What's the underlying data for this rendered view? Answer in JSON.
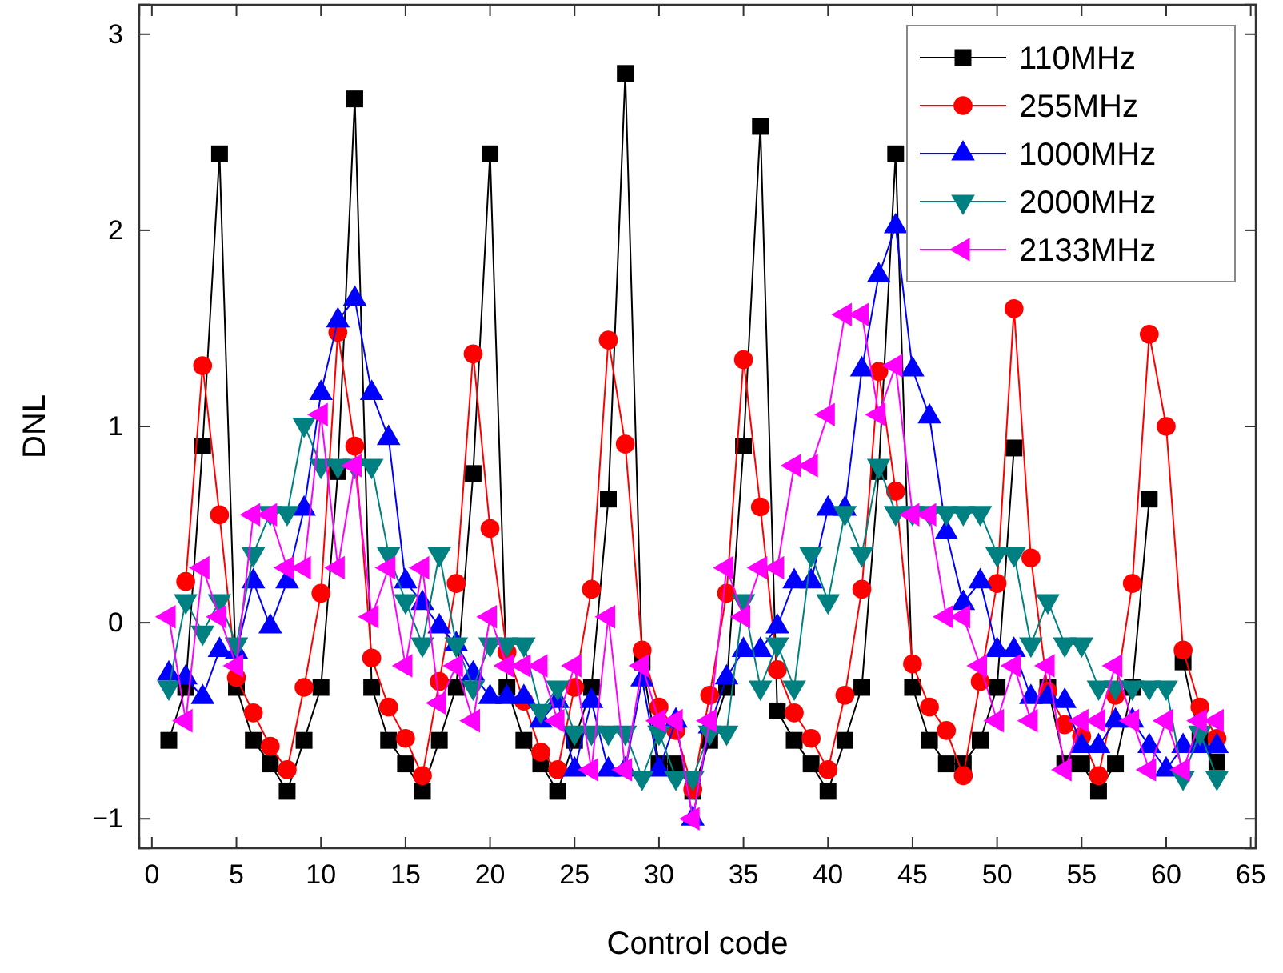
{
  "chart_data": {
    "type": "line",
    "xlabel": "Control code",
    "ylabel": "DNL",
    "x": [
      1,
      2,
      3,
      4,
      5,
      6,
      7,
      8,
      9,
      10,
      11,
      12,
      13,
      14,
      15,
      16,
      17,
      18,
      19,
      20,
      21,
      22,
      23,
      24,
      25,
      26,
      27,
      28,
      29,
      30,
      31,
      32,
      33,
      34,
      35,
      36,
      37,
      38,
      39,
      40,
      41,
      42,
      43,
      44,
      45,
      46,
      47,
      48,
      49,
      50,
      51,
      52,
      53,
      54,
      55,
      56,
      57,
      58,
      59,
      60,
      61,
      62,
      63
    ],
    "xlim": [
      -0.75,
      65.3
    ],
    "xticks": [
      0,
      5,
      10,
      15,
      20,
      25,
      30,
      35,
      40,
      45,
      50,
      55,
      60,
      65
    ],
    "ylim": [
      -1.15,
      3.15
    ],
    "yticks": [
      -1,
      0,
      1,
      2,
      3
    ],
    "legend": "top right",
    "grid": false,
    "series": [
      {
        "name": "110MHz",
        "color": "#000000",
        "marker": "square",
        "values": [
          -0.6,
          -0.33,
          0.9,
          2.39,
          -0.33,
          -0.6,
          -0.72,
          -0.86,
          -0.6,
          -0.33,
          0.77,
          2.67,
          -0.33,
          -0.6,
          -0.72,
          -0.86,
          -0.6,
          -0.33,
          0.76,
          2.39,
          -0.33,
          -0.6,
          -0.72,
          -0.86,
          -0.6,
          -0.33,
          0.63,
          2.8,
          -0.2,
          -0.72,
          -0.72,
          -0.86,
          -0.6,
          -0.33,
          0.9,
          2.53,
          -0.45,
          -0.6,
          -0.72,
          -0.86,
          -0.6,
          -0.33,
          0.77,
          2.39,
          -0.33,
          -0.6,
          -0.72,
          -0.72,
          -0.6,
          -0.33,
          0.89,
          null,
          -0.33,
          -0.72,
          -0.72,
          -0.86,
          -0.72,
          -0.33,
          0.63,
          null,
          -0.2,
          -0.6,
          -0.71
        ]
      },
      {
        "name": "255MHz",
        "color": "#ff0000",
        "marker": "circle",
        "values": [
          null,
          0.21,
          1.31,
          0.55,
          -0.28,
          -0.46,
          -0.63,
          -0.75,
          -0.33,
          0.15,
          1.48,
          0.9,
          -0.18,
          -0.43,
          -0.59,
          -0.78,
          -0.3,
          0.2,
          1.37,
          0.48,
          -0.15,
          -0.4,
          -0.66,
          -0.75,
          -0.33,
          0.17,
          1.44,
          0.91,
          -0.14,
          -0.43,
          -0.55,
          -0.85,
          -0.37,
          0.15,
          1.34,
          0.59,
          -0.24,
          -0.46,
          -0.59,
          -0.75,
          -0.37,
          0.17,
          1.28,
          0.67,
          -0.21,
          -0.43,
          -0.55,
          -0.78,
          -0.3,
          0.2,
          1.6,
          0.33,
          -0.35,
          -0.52,
          -0.58,
          -0.78,
          -0.37,
          0.2,
          1.47,
          1.0,
          -0.14,
          -0.43,
          -0.59
        ]
      },
      {
        "name": "1000MHz",
        "color": "#0000ff",
        "marker": "triangle",
        "values": [
          -0.26,
          -0.28,
          -0.38,
          -0.14,
          -0.15,
          0.21,
          -0.02,
          0.21,
          0.58,
          1.17,
          1.54,
          1.65,
          1.17,
          0.94,
          0.21,
          0.1,
          -0.02,
          -0.11,
          -0.26,
          -0.38,
          -0.38,
          -0.38,
          -0.5,
          -0.4,
          -0.75,
          -0.4,
          -0.75,
          -0.75,
          -0.29,
          -0.75,
          -0.5,
          -1.0,
          -0.53,
          -0.28,
          -0.14,
          -0.14,
          -0.02,
          0.21,
          0.21,
          0.58,
          0.58,
          1.29,
          1.77,
          2.02,
          1.29,
          1.05,
          0.46,
          0.1,
          0.21,
          -0.14,
          -0.14,
          -0.38,
          -0.38,
          -0.4,
          -0.63,
          -0.63,
          -0.5,
          -0.5,
          -0.63,
          -0.75,
          -0.63,
          -0.63,
          -0.63
        ]
      },
      {
        "name": "2000MHz",
        "color": "#008080",
        "marker": "triangle-down",
        "values": [
          -0.33,
          0.11,
          -0.05,
          0.11,
          -0.11,
          0.35,
          0.56,
          0.56,
          1.01,
          0.8,
          0.8,
          0.8,
          0.8,
          0.35,
          0.11,
          -0.11,
          0.35,
          -0.11,
          -0.33,
          -0.11,
          -0.11,
          -0.11,
          -0.45,
          -0.33,
          -0.56,
          -0.56,
          -0.56,
          -0.56,
          -0.79,
          -0.56,
          -0.79,
          -0.79,
          -0.56,
          -0.56,
          0.11,
          -0.33,
          -0.11,
          -0.33,
          0.35,
          0.11,
          0.56,
          0.35,
          0.8,
          0.56,
          0.56,
          0.56,
          0.56,
          0.56,
          0.56,
          0.35,
          0.35,
          -0.11,
          0.11,
          -0.11,
          -0.11,
          -0.33,
          -0.33,
          -0.33,
          -0.33,
          -0.33,
          -0.79,
          -0.56,
          -0.79
        ]
      },
      {
        "name": "2133MHz",
        "color": "#ff00ff",
        "marker": "triangle-left",
        "values": [
          0.03,
          -0.5,
          0.28,
          0.03,
          -0.22,
          0.55,
          0.55,
          0.28,
          0.28,
          1.06,
          0.28,
          0.8,
          0.03,
          0.28,
          -0.22,
          0.28,
          -0.41,
          -0.22,
          -0.5,
          0.03,
          -0.22,
          -0.22,
          -0.22,
          -0.5,
          -0.22,
          -0.75,
          0.03,
          -0.75,
          -0.22,
          -0.5,
          -0.5,
          -1.0,
          -0.5,
          0.28,
          0.03,
          0.28,
          0.28,
          0.8,
          0.8,
          1.06,
          1.57,
          1.57,
          1.06,
          1.31,
          0.55,
          0.55,
          0.03,
          0.03,
          -0.22,
          -0.5,
          -0.22,
          -0.5,
          -0.22,
          -0.75,
          -0.5,
          -0.5,
          -0.22,
          -0.5,
          -0.75,
          -0.5,
          -0.75,
          -0.5,
          -0.5
        ]
      }
    ]
  }
}
